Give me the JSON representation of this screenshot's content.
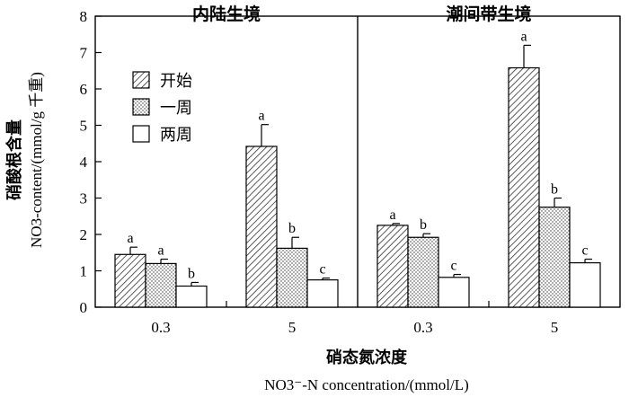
{
  "chart_data": {
    "type": "bar",
    "y_tick_labels": [
      "0",
      "1",
      "2",
      "3",
      "4",
      "5",
      "6",
      "7",
      "8"
    ],
    "ylim": [
      0,
      8
    ],
    "ylabel_cn": "硝酸根含量",
    "ylabel_en": "NO3-content/(mmol/g 千重)",
    "xlabel_cn": "硝态氮浓度",
    "xlabel_en": "NO3⁻-N concentration/(mmol/L)",
    "panels": [
      {
        "title": "内陆生境",
        "categories": [
          "0.3",
          "5"
        ],
        "series": [
          {
            "name": "开始",
            "values": [
              1.45,
              4.42
            ],
            "errors": [
              0.2,
              0.6
            ],
            "letters": [
              "a",
              "a"
            ]
          },
          {
            "name": "一周",
            "values": [
              1.2,
              1.62
            ],
            "errors": [
              0.12,
              0.3
            ],
            "letters": [
              "a",
              "b"
            ]
          },
          {
            "name": "两周",
            "values": [
              0.58,
              0.75
            ],
            "errors": [
              0.1,
              0.05
            ],
            "letters": [
              "b",
              "c"
            ]
          }
        ]
      },
      {
        "title": "潮间带生境",
        "categories": [
          "0.3",
          "5"
        ],
        "series": [
          {
            "name": "开始",
            "values": [
              2.25,
              6.58
            ],
            "errors": [
              0.05,
              0.62
            ],
            "letters": [
              "a",
              "a"
            ]
          },
          {
            "name": "一周",
            "values": [
              1.92,
              2.75
            ],
            "errors": [
              0.1,
              0.25
            ],
            "letters": [
              "b",
              "b"
            ]
          },
          {
            "name": "两周",
            "values": [
              0.82,
              1.22
            ],
            "errors": [
              0.08,
              0.1
            ],
            "letters": [
              "c",
              "c"
            ]
          }
        ]
      }
    ],
    "legend": {
      "entries": [
        "开始",
        "一周",
        "两周"
      ],
      "placement": "top-left"
    },
    "grid": false
  }
}
